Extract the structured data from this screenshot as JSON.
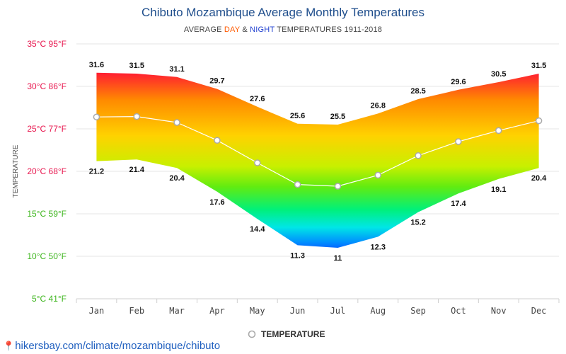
{
  "title": "Chibuto Mozambique Average Monthly Temperatures",
  "subtitle": {
    "prefix": "AVERAGE ",
    "day": "DAY",
    "amp": " & ",
    "night": "NIGHT",
    "suffix": " TEMPERATURES 1911-2018"
  },
  "footer": {
    "url": "hikersbay.com/climate/mozambique/chibuto"
  },
  "legend": {
    "label": "TEMPERATURE"
  },
  "chart_data": {
    "type": "area",
    "ylabel": "TEMPERATURE",
    "ylim": [
      5,
      35
    ],
    "y_ticks": [
      {
        "value": 35,
        "label": "35°C 95°F",
        "color": "#e8174f"
      },
      {
        "value": 30,
        "label": "30°C 86°F",
        "color": "#e8174f"
      },
      {
        "value": 25,
        "label": "25°C 77°F",
        "color": "#e8174f"
      },
      {
        "value": 20,
        "label": "20°C 68°F",
        "color": "#e8174f"
      },
      {
        "value": 15,
        "label": "15°C 59°F",
        "color": "#3fb61f"
      },
      {
        "value": 10,
        "label": "10°C 50°F",
        "color": "#3fb61f"
      },
      {
        "value": 5,
        "label": "5°C 41°F",
        "color": "#3fb61f"
      }
    ],
    "categories": [
      "Jan",
      "Feb",
      "Mar",
      "Apr",
      "May",
      "Jun",
      "Jul",
      "Aug",
      "Sep",
      "Oct",
      "Nov",
      "Dec"
    ],
    "series": [
      {
        "key": "day",
        "values": [
          31.6,
          31.5,
          31.1,
          29.7,
          27.6,
          25.6,
          25.5,
          26.8,
          28.5,
          29.6,
          30.5,
          31.5
        ]
      },
      {
        "key": "night",
        "values": [
          21.2,
          21.4,
          20.4,
          17.6,
          14.4,
          11.3,
          11,
          12.3,
          15.2,
          17.4,
          19.1,
          20.4
        ]
      },
      {
        "key": "average",
        "name": "TEMPERATURE",
        "values": [
          26.4,
          26.45,
          25.75,
          23.65,
          21,
          18.45,
          18.25,
          19.55,
          21.85,
          23.5,
          24.8,
          25.95
        ]
      }
    ],
    "day_labels": [
      "31.6",
      "31.5",
      "31.1",
      "29.7",
      "27.6",
      "25.6",
      "25.5",
      "26.8",
      "28.5",
      "29.6",
      "30.5",
      "31.5"
    ],
    "night_labels": [
      "21.2",
      "21.4",
      "20.4",
      "17.6",
      "14.4",
      "11.3",
      "11",
      "12.3",
      "15.2",
      "17.4",
      "19.1",
      "20.4"
    ],
    "grid": true,
    "legend_position": "bottom"
  }
}
